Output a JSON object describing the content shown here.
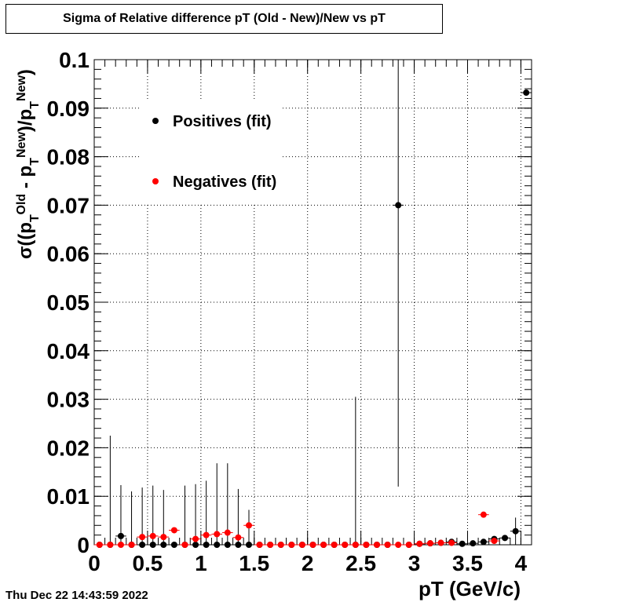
{
  "title": "Sigma of Relative difference pT (Old - New)/New vs pT",
  "datestamp": "Thu Dec 22 14:43:59 2022",
  "chart_data": {
    "type": "scatter",
    "title": "Sigma of Relative difference pT (Old - New)/New vs pT",
    "xlabel": "pT (GeV/c)",
    "ylabel": "σ((p_T^Old - p_T^New)/p_T^New)",
    "xlim": [
      0,
      4.1
    ],
    "ylim": [
      0,
      0.1
    ],
    "grid": true,
    "legend_placement": "top-left",
    "x_ticks": [
      "0",
      "0.5",
      "1",
      "1.5",
      "2",
      "2.5",
      "3",
      "3.5",
      "4"
    ],
    "y_ticks": [
      "0",
      "0.01",
      "0.02",
      "0.03",
      "0.04",
      "0.05",
      "0.06",
      "0.07",
      "0.08",
      "0.09",
      "0.1"
    ],
    "series": [
      {
        "name": "Positives (fit)",
        "color": "#000000",
        "points": [
          {
            "x": 0.05,
            "y": 0.0,
            "err": 0.0
          },
          {
            "x": 0.15,
            "y": 0.0,
            "err": 0.0225
          },
          {
            "x": 0.25,
            "y": 0.0018,
            "err": 0.0105
          },
          {
            "x": 0.35,
            "y": 0.0,
            "err": 0.011
          },
          {
            "x": 0.45,
            "y": 0.0,
            "err": 0.0118
          },
          {
            "x": 0.55,
            "y": 0.0,
            "err": 0.0122
          },
          {
            "x": 0.65,
            "y": 0.0,
            "err": 0.0113
          },
          {
            "x": 0.75,
            "y": 0.0,
            "err": 0.0
          },
          {
            "x": 0.85,
            "y": 0.0,
            "err": 0.0122
          },
          {
            "x": 0.95,
            "y": 0.0,
            "err": 0.0125
          },
          {
            "x": 1.05,
            "y": 0.0,
            "err": 0.0132
          },
          {
            "x": 1.15,
            "y": 0.0,
            "err": 0.0168
          },
          {
            "x": 1.25,
            "y": 0.0,
            "err": 0.0168
          },
          {
            "x": 1.35,
            "y": 0.0,
            "err": 0.0115
          },
          {
            "x": 1.45,
            "y": 0.0,
            "err": 0.0072
          },
          {
            "x": 1.55,
            "y": 0.0,
            "err": 0.0
          },
          {
            "x": 1.65,
            "y": 0.0,
            "err": 0.0
          },
          {
            "x": 1.75,
            "y": 0.0,
            "err": 0.0
          },
          {
            "x": 1.85,
            "y": 0.0,
            "err": 0.0
          },
          {
            "x": 1.95,
            "y": 0.0,
            "err": 0.0
          },
          {
            "x": 2.05,
            "y": 0.0,
            "err": 0.0
          },
          {
            "x": 2.15,
            "y": 0.0,
            "err": 0.0
          },
          {
            "x": 2.25,
            "y": 0.0,
            "err": 0.0
          },
          {
            "x": 2.35,
            "y": 0.0,
            "err": 0.0
          },
          {
            "x": 2.45,
            "y": 0.0,
            "err": 0.0305
          },
          {
            "x": 2.55,
            "y": 0.0,
            "err": 0.0
          },
          {
            "x": 2.65,
            "y": 0.0,
            "err": 0.0
          },
          {
            "x": 2.75,
            "y": 0.0,
            "err": 0.0
          },
          {
            "x": 2.85,
            "y": 0.07,
            "err": 0.058
          },
          {
            "x": 2.95,
            "y": 0.0,
            "err": 0.0
          },
          {
            "x": 3.05,
            "y": 0.0002,
            "err": 0.0
          },
          {
            "x": 3.15,
            "y": 0.0003,
            "err": 0.0
          },
          {
            "x": 3.25,
            "y": 0.0004,
            "err": 0.0
          },
          {
            "x": 3.35,
            "y": 0.0006,
            "err": 0.0
          },
          {
            "x": 3.45,
            "y": 0.0002,
            "err": 0.0
          },
          {
            "x": 3.55,
            "y": 0.0003,
            "err": 0.0
          },
          {
            "x": 3.65,
            "y": 0.0006,
            "err": 0.0
          },
          {
            "x": 3.75,
            "y": 0.0012,
            "err": 0.0
          },
          {
            "x": 3.85,
            "y": 0.0014,
            "err": 0.0
          },
          {
            "x": 3.95,
            "y": 0.0028,
            "err": 0.0028
          },
          {
            "x": 4.05,
            "y": 0.0932,
            "err": 0.0
          }
        ]
      },
      {
        "name": "Negatives (fit)",
        "color": "#ff0000",
        "points": [
          {
            "x": 0.05,
            "y": 0.0
          },
          {
            "x": 0.15,
            "y": 0.0
          },
          {
            "x": 0.25,
            "y": 0.0
          },
          {
            "x": 0.35,
            "y": 0.0
          },
          {
            "x": 0.45,
            "y": 0.0016
          },
          {
            "x": 0.55,
            "y": 0.0018
          },
          {
            "x": 0.65,
            "y": 0.0016
          },
          {
            "x": 0.75,
            "y": 0.003
          },
          {
            "x": 0.85,
            "y": 0.0
          },
          {
            "x": 0.95,
            "y": 0.0012
          },
          {
            "x": 1.05,
            "y": 0.002
          },
          {
            "x": 1.15,
            "y": 0.0022
          },
          {
            "x": 1.25,
            "y": 0.0025
          },
          {
            "x": 1.35,
            "y": 0.0015
          },
          {
            "x": 1.45,
            "y": 0.004
          },
          {
            "x": 1.55,
            "y": 0.0
          },
          {
            "x": 1.65,
            "y": 0.0
          },
          {
            "x": 1.75,
            "y": 0.0
          },
          {
            "x": 1.85,
            "y": 0.0
          },
          {
            "x": 1.95,
            "y": 0.0
          },
          {
            "x": 2.05,
            "y": 0.0
          },
          {
            "x": 2.15,
            "y": 0.0
          },
          {
            "x": 2.25,
            "y": 0.0
          },
          {
            "x": 2.35,
            "y": 0.0
          },
          {
            "x": 2.45,
            "y": 0.0
          },
          {
            "x": 2.55,
            "y": 0.0
          },
          {
            "x": 2.65,
            "y": 0.0
          },
          {
            "x": 2.75,
            "y": 0.0
          },
          {
            "x": 2.85,
            "y": 0.0
          },
          {
            "x": 2.95,
            "y": 0.0
          },
          {
            "x": 3.05,
            "y": 0.0002
          },
          {
            "x": 3.15,
            "y": 0.0003
          },
          {
            "x": 3.25,
            "y": 0.0004
          },
          {
            "x": 3.35,
            "y": 0.0004
          },
          {
            "x": 3.65,
            "y": 0.0062
          },
          {
            "x": 3.75,
            "y": 0.0008
          }
        ]
      }
    ]
  }
}
